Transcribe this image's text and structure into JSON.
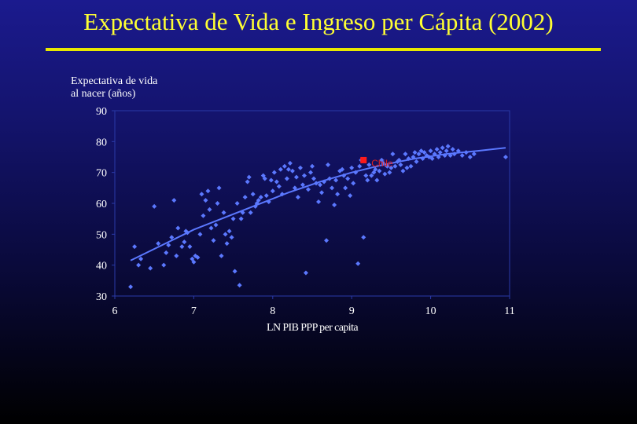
{
  "slide": {
    "title": "Expectativa de Vida e Ingreso per Cápita (2002)"
  },
  "colors": {
    "title": "#ffff33",
    "rule": "#e8e800",
    "points": "#5b78ff",
    "trend": "#5b78ff",
    "highlight": "#ff1a1a",
    "highlight_label": "#e02020"
  },
  "chart_data": {
    "type": "scatter",
    "title": "",
    "ylabel_lines": [
      "Expectativa de vida",
      "al nacer (años)"
    ],
    "xlabel": "LN PIB PPP per capita",
    "xlim": [
      6,
      11
    ],
    "ylim": [
      30,
      90
    ],
    "xticks": [
      "6",
      "7",
      "8",
      "9",
      "10",
      "11"
    ],
    "yticks": [
      "90",
      "80",
      "70",
      "60",
      "50",
      "40",
      "30"
    ],
    "grid": false,
    "highlight": {
      "label": "Chile",
      "x": 9.15,
      "y": 74.0
    },
    "trendline": {
      "x": [
        6.2,
        6.6,
        7.0,
        7.4,
        7.8,
        8.2,
        8.6,
        9.0,
        9.4,
        9.8,
        10.2,
        10.6,
        10.95
      ],
      "y": [
        41.5,
        46.5,
        51.5,
        55.5,
        59.5,
        63.5,
        67.0,
        70.0,
        72.5,
        74.5,
        76.0,
        77.0,
        78.0
      ]
    },
    "series": [
      {
        "x": [
          6.2,
          6.25,
          6.3,
          6.33,
          6.45,
          6.5,
          6.55,
          6.62,
          6.65,
          6.68,
          6.72,
          6.75,
          6.78,
          6.8,
          6.85,
          6.88,
          6.9,
          6.92,
          6.95,
          6.98,
          7.0,
          7.02,
          7.05,
          7.08,
          7.1,
          7.12,
          7.15,
          7.18,
          7.2,
          7.22,
          7.25,
          7.28,
          7.3,
          7.32,
          7.35,
          7.38,
          7.4,
          7.42,
          7.45,
          7.48,
          7.5,
          7.52,
          7.55,
          7.58,
          7.6,
          7.62,
          7.65,
          7.68,
          7.7,
          7.72,
          7.75,
          7.78,
          7.8,
          7.82,
          7.85,
          7.88,
          7.9,
          7.92,
          7.95,
          7.98,
          8.0,
          8.02,
          8.05,
          8.08,
          8.1,
          8.12,
          8.15,
          8.18,
          8.2,
          8.22,
          8.25,
          8.28,
          8.3,
          8.32,
          8.35,
          8.38,
          8.4,
          8.42,
          8.45,
          8.48,
          8.5,
          8.52,
          8.55,
          8.58,
          8.6,
          8.62,
          8.65,
          8.68,
          8.7,
          8.72,
          8.75,
          8.78,
          8.8,
          8.82,
          8.85,
          8.88,
          8.9,
          8.92,
          8.95,
          8.98,
          9.0,
          9.02,
          9.05,
          9.08,
          9.1,
          9.12,
          9.15,
          9.18,
          9.2,
          9.22,
          9.25,
          9.28,
          9.3,
          9.32,
          9.35,
          9.38,
          9.4,
          9.42,
          9.45,
          9.48,
          9.5,
          9.52,
          9.55,
          9.58,
          9.6,
          9.62,
          9.65,
          9.68,
          9.7,
          9.72,
          9.75,
          9.78,
          9.8,
          9.82,
          9.85,
          9.88,
          9.9,
          9.92,
          9.95,
          9.98,
          10.0,
          10.02,
          10.05,
          10.08,
          10.1,
          10.12,
          10.15,
          10.18,
          10.2,
          10.22,
          10.25,
          10.28,
          10.3,
          10.35,
          10.4,
          10.45,
          10.5,
          10.55,
          10.95
        ],
        "y": [
          33.0,
          46.0,
          40.0,
          42.0,
          39.0,
          59.0,
          47.0,
          40.0,
          44.0,
          46.5,
          49.0,
          61.0,
          43.0,
          52.0,
          46.0,
          47.5,
          51.0,
          50.5,
          46.0,
          42.0,
          41.0,
          43.0,
          42.5,
          50.0,
          63.0,
          56.0,
          61.0,
          64.0,
          58.0,
          52.0,
          48.0,
          53.0,
          60.0,
          65.0,
          43.0,
          57.0,
          50.0,
          47.0,
          51.0,
          49.0,
          55.0,
          38.0,
          60.0,
          33.5,
          55.0,
          57.0,
          62.0,
          67.0,
          68.5,
          57.0,
          63.0,
          59.0,
          60.0,
          61.0,
          62.0,
          69.0,
          68.0,
          62.5,
          60.5,
          67.5,
          64.0,
          70.0,
          67.0,
          65.5,
          71.0,
          63.0,
          72.0,
          68.0,
          71.0,
          73.0,
          70.5,
          65.0,
          68.5,
          62.0,
          71.5,
          66.0,
          69.0,
          37.5,
          64.5,
          70.0,
          72.0,
          68.0,
          66.5,
          60.5,
          66.0,
          63.5,
          67.0,
          48.0,
          72.5,
          68.0,
          65.0,
          59.5,
          67.5,
          63.0,
          70.5,
          71.0,
          69.0,
          65.0,
          68.0,
          62.5,
          71.5,
          66.5,
          70.0,
          40.5,
          72.0,
          74.0,
          49.0,
          69.0,
          67.5,
          72.5,
          69.0,
          70.0,
          71.0,
          67.5,
          70.5,
          74.0,
          73.0,
          69.5,
          72.0,
          70.0,
          71.5,
          76.0,
          72.0,
          73.5,
          74.0,
          72.5,
          70.5,
          76.0,
          71.5,
          74.5,
          72.0,
          75.0,
          76.5,
          73.5,
          76.0,
          77.0,
          74.5,
          76.5,
          75.5,
          75.0,
          77.0,
          74.5,
          76.0,
          77.5,
          75.0,
          76.5,
          78.0,
          75.5,
          77.0,
          78.5,
          75.5,
          77.5,
          76.0,
          77.0,
          75.5,
          76.5,
          75.0,
          76.0,
          75.0
        ]
      }
    ]
  }
}
